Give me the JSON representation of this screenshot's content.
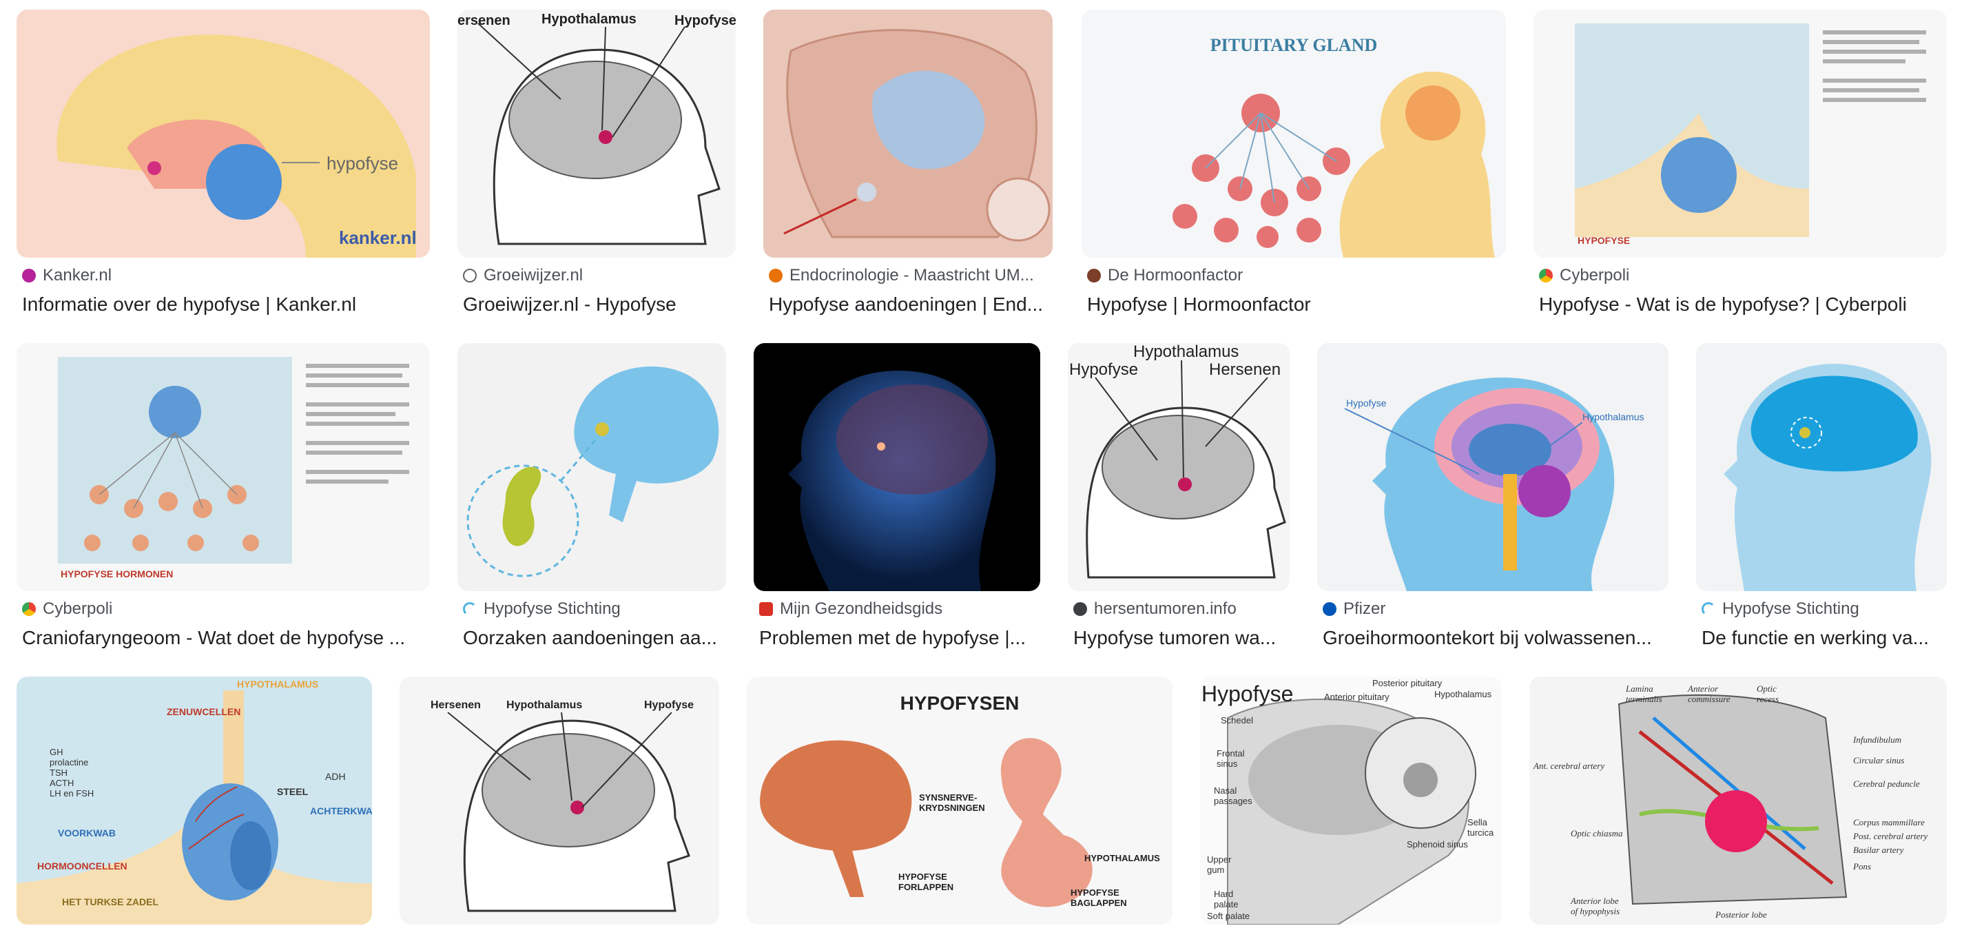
{
  "results": [
    {
      "source": "Kanker.nl",
      "title": "Informatie over de hypofyse | Kanker.nl",
      "icon": "kanker-favicon-icon",
      "color": "#b5229a",
      "labels": {
        "main": "hypofyse",
        "brand": "kanker.nl"
      }
    },
    {
      "source": "Groeiwijzer.nl",
      "title": "Groeiwijzer.nl - Hypofyse",
      "icon": "globe-favicon-icon",
      "color": "#5f6368",
      "labels": {
        "l1": "ersenen",
        "l2": "Hypothalamus",
        "l3": "Hypofyse"
      }
    },
    {
      "source": "Endocrinologie - Maastricht UM...",
      "title": "Hypofyse aandoeningen | End...",
      "icon": "endocrinologie-favicon-icon",
      "color": "#e8710a",
      "labels": {}
    },
    {
      "source": "De Hormoonfactor",
      "title": "Hypofyse | Hormoonfactor",
      "icon": "hormoonfactor-favicon-icon",
      "color": "#7b3f2a",
      "labels": {
        "heading": "PITUITARY GLAND"
      }
    },
    {
      "source": "Cyberpoli",
      "title": "Hypofyse - Wat is de hypofyse? | Cyberpoli",
      "icon": "cyberpoli-favicon-icon",
      "color": "#e94235",
      "labels": {
        "footer": "HYPOFYSE"
      }
    },
    {
      "source": "Cyberpoli",
      "title": "Craniofaryngeoom - Wat doet de hypofyse ...",
      "icon": "cyberpoli-favicon-icon",
      "color": "#e94235",
      "labels": {
        "footer": "HYPOFYSE HORMONEN"
      }
    },
    {
      "source": "Hypofyse Stichting",
      "title": "Oorzaken aandoeningen aa...",
      "icon": "stichting-favicon-icon",
      "color": "#4fb3e0",
      "labels": {}
    },
    {
      "source": "Mijn Gezondheidsgids",
      "title": "Problemen met de hypofyse |...",
      "icon": "gezondheidsgids-favicon-icon",
      "color": "#d93025",
      "labels": {}
    },
    {
      "source": "hersentumoren.info",
      "title": "Hypofyse tumoren wa...",
      "icon": "hersentumoren-favicon-icon",
      "color": "#3c4043",
      "labels": {
        "l1": "Hypothalamus",
        "l2": "Hypofyse",
        "l3": "Hersenen"
      }
    },
    {
      "source": "Pfizer",
      "title": "Groeihormoontekort bij volwassenen...",
      "icon": "pfizer-favicon-icon",
      "color": "#0057b8",
      "labels": {
        "l1": "Hypofyse",
        "l2": "Hypothalamus"
      }
    },
    {
      "source": "Hypofyse Stichting",
      "title": "De functie en werking va...",
      "icon": "stichting-favicon-icon",
      "color": "#4fb3e0",
      "labels": {}
    },
    {
      "source": "",
      "title": "",
      "icon": "",
      "color": "",
      "labels": {
        "top": "HYPOTHALAMUS",
        "z": "ZENUWCELLEN",
        "list": "GH\nprolactine\nTSH\nACTH\nLH en FSH",
        "adh": "ADH",
        "steel": "STEEL",
        "achter": "ACHTERKWAB",
        "voor": "VOORKWAB",
        "horm": "HORMOONCELLEN",
        "zadel": "HET TURKSE ZADEL"
      }
    },
    {
      "source": "",
      "title": "",
      "icon": "",
      "color": "",
      "labels": {
        "l1": "Hersenen",
        "l2": "Hypothalamus",
        "l3": "Hypofyse"
      }
    },
    {
      "source": "",
      "title": "",
      "icon": "",
      "color": "",
      "labels": {
        "heading": "HYPOFYSEN",
        "a": "SYNSNERVE-\nKRYDSNINGEN",
        "b": "HYPOTHALAMUS",
        "c": "HYPOFYSE\nFORLAPPEN",
        "d": "HYPOFYSE\nBAGLAPPEN"
      }
    },
    {
      "source": "",
      "title": "",
      "icon": "",
      "color": "",
      "labels": {
        "heading": "Hypofyse",
        "a": "Posterior pituitary",
        "b": "Anterior pituitary",
        "c": "Hypothalamus",
        "d": "Schedel",
        "e": "Frontal\nsinus",
        "f": "Nasal\npassages",
        "g": "Sella\nturcica",
        "h": "Sphenoid sinus",
        "i": "Upper\ngum",
        "j": "Hard\npalate",
        "k": "Soft palate"
      }
    },
    {
      "source": "",
      "title": "",
      "icon": "",
      "color": "",
      "labels": {
        "a": "Lamina\nterminalis",
        "b": "Anterior\ncommissure",
        "c": "Optic\nrecess",
        "d": "Infundibulum",
        "e": "Circular sinus",
        "f": "Cerebral peduncle",
        "g": "Ant. cerebral artery",
        "h": "Optic chiasma",
        "i": "Corpus mammillare",
        "j": "Post. cerebral artery",
        "k": "Basilar artery",
        "l": "Pons",
        "m": "Anterior lobe\nof hypophysis",
        "n": "Posterior lobe"
      }
    }
  ]
}
